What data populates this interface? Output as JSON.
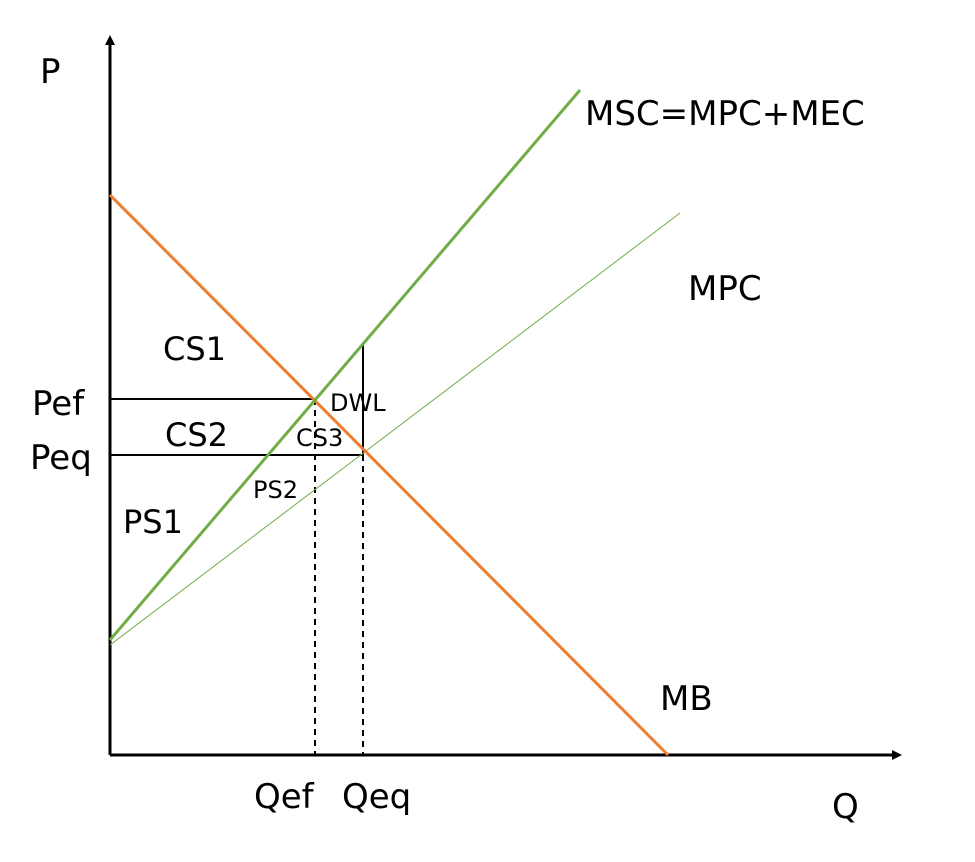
{
  "axes": {
    "y_label": "P",
    "x_label": "Q",
    "y_ticks": {
      "pef": "Pef",
      "peq": "Peq"
    },
    "x_ticks": {
      "qef": "Qef",
      "qeq": "Qeq"
    }
  },
  "curves": {
    "msc": {
      "label": "MSC=MPC+MEC",
      "color": "#70ad47"
    },
    "mpc": {
      "label": "MPC",
      "color": "#70ad47"
    },
    "mb": {
      "label": "MB",
      "color": "#ed7d31"
    }
  },
  "regions": {
    "cs1": "CS1",
    "cs2": "CS2",
    "cs3": "CS3",
    "ps1": "PS1",
    "ps2": "PS2",
    "dwl": "DWL"
  }
}
